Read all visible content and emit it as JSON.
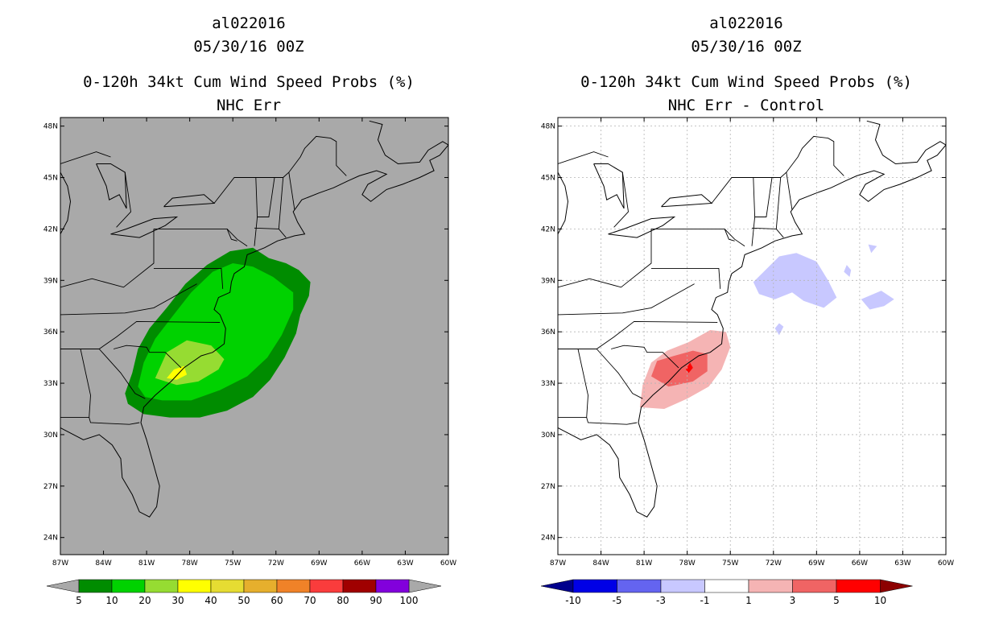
{
  "panels": [
    {
      "title_lines": [
        "al022016",
        "05/30/16 00Z",
        "0-120h 34kt Cum Wind Speed Probs (%)",
        "NHC Err"
      ],
      "background": "#a9a9a9",
      "gridlines": false
    },
    {
      "title_lines": [
        "al022016",
        "05/30/16 00Z",
        "0-120h 34kt Cum Wind Speed Probs (%)",
        "NHC Err - Control"
      ],
      "background": "#ffffff",
      "gridlines": true
    }
  ],
  "chart_data": [
    {
      "type": "heatmap",
      "title": "0-120h 34kt Cum Wind Speed Probs (%)",
      "subtitle": "NHC Err",
      "storm": "al022016",
      "date": "05/30/16 00Z",
      "xlim": [
        -87,
        -60
      ],
      "ylim": [
        23,
        48.5
      ],
      "x_ticks": [
        "87W",
        "84W",
        "81W",
        "78W",
        "75W",
        "72W",
        "69W",
        "66W",
        "63W",
        "60W"
      ],
      "y_ticks": [
        "24N",
        "27N",
        "30N",
        "33N",
        "36N",
        "39N",
        "42N",
        "45N",
        "48N"
      ],
      "colorbar": {
        "labels": [
          "5",
          "10",
          "20",
          "30",
          "40",
          "50",
          "60",
          "70",
          "80",
          "90",
          "100"
        ],
        "colors": [
          "#008c00",
          "#00d200",
          "#96dc32",
          "#ffff00",
          "#e6dc32",
          "#e6af2d",
          "#f08228",
          "#fa3c3c",
          "#a00000",
          "#8200dc"
        ],
        "under_color": "#a9a9a9",
        "over_color": "#a9a9a9"
      },
      "contours": [
        {
          "level": "5-10",
          "color": "#008c00",
          "points": [
            [
              -82.5,
              32.4
            ],
            [
              -82.0,
              33.6
            ],
            [
              -81.6,
              35.0
            ],
            [
              -80.8,
              36.2
            ],
            [
              -79.6,
              37.4
            ],
            [
              -78.3,
              38.8
            ],
            [
              -76.8,
              39.9
            ],
            [
              -75.2,
              40.7
            ],
            [
              -73.6,
              40.9
            ],
            [
              -72.5,
              40.3
            ],
            [
              -71.3,
              40.0
            ],
            [
              -70.4,
              39.6
            ],
            [
              -69.6,
              38.9
            ],
            [
              -69.7,
              38.1
            ],
            [
              -70.3,
              37.0
            ],
            [
              -70.6,
              35.9
            ],
            [
              -71.4,
              34.5
            ],
            [
              -72.4,
              33.2
            ],
            [
              -73.6,
              32.2
            ],
            [
              -75.4,
              31.4
            ],
            [
              -77.3,
              31.0
            ],
            [
              -79.4,
              31.0
            ],
            [
              -81.2,
              31.2
            ],
            [
              -82.3,
              31.8
            ]
          ]
        },
        {
          "level": "10-20",
          "color": "#00d200",
          "points": [
            [
              -81.6,
              32.8
            ],
            [
              -81.2,
              34.2
            ],
            [
              -80.4,
              35.6
            ],
            [
              -79.2,
              36.9
            ],
            [
              -77.9,
              38.3
            ],
            [
              -76.4,
              39.5
            ],
            [
              -75.0,
              40.0
            ],
            [
              -73.6,
              39.8
            ],
            [
              -72.2,
              39.2
            ],
            [
              -70.8,
              38.3
            ],
            [
              -70.8,
              37.3
            ],
            [
              -71.6,
              35.8
            ],
            [
              -72.6,
              34.5
            ],
            [
              -74.0,
              33.4
            ],
            [
              -75.9,
              32.6
            ],
            [
              -77.9,
              32.0
            ],
            [
              -79.9,
              32.0
            ],
            [
              -81.1,
              32.2
            ]
          ]
        },
        {
          "level": "20-30",
          "color": "#96dc32",
          "points": [
            [
              -80.4,
              33.3
            ],
            [
              -79.6,
              34.8
            ],
            [
              -78.2,
              35.5
            ],
            [
              -76.5,
              35.2
            ],
            [
              -75.6,
              34.4
            ],
            [
              -76.0,
              33.8
            ],
            [
              -77.4,
              33.1
            ],
            [
              -78.9,
              32.9
            ]
          ]
        },
        {
          "level": "30-40",
          "color": "#ffff00",
          "points": [
            [
              -79.6,
              33.3
            ],
            [
              -79.1,
              33.8
            ],
            [
              -78.4,
              34.0
            ],
            [
              -78.2,
              33.5
            ],
            [
              -78.9,
              33.2
            ]
          ]
        }
      ]
    },
    {
      "type": "heatmap",
      "title": "0-120h 34kt Cum Wind Speed Probs (%)",
      "subtitle": "NHC Err - Control",
      "storm": "al022016",
      "date": "05/30/16 00Z",
      "xlim": [
        -87,
        -60
      ],
      "ylim": [
        23,
        48.5
      ],
      "x_ticks": [
        "87W",
        "84W",
        "81W",
        "78W",
        "75W",
        "72W",
        "69W",
        "66W",
        "63W",
        "60W"
      ],
      "y_ticks": [
        "24N",
        "27N",
        "30N",
        "33N",
        "36N",
        "39N",
        "42N",
        "45N",
        "48N"
      ],
      "colorbar": {
        "labels": [
          "-10",
          "-5",
          "-3",
          "-1",
          "1",
          "3",
          "5",
          "10"
        ],
        "colors": [
          "#0000e6",
          "#6464f0",
          "#c8c8ff",
          "#ffffff",
          "#f5b4b4",
          "#f06464",
          "#ff0000"
        ],
        "under_color": "#00008c",
        "over_color": "#8c0000"
      },
      "contours": [
        {
          "level": "1 to 3",
          "color": "#f5b4b4",
          "points": [
            [
              -81.3,
              31.6
            ],
            [
              -81.1,
              32.9
            ],
            [
              -80.5,
              34.2
            ],
            [
              -79.4,
              34.9
            ],
            [
              -77.9,
              35.4
            ],
            [
              -76.4,
              36.1
            ],
            [
              -75.3,
              36.0
            ],
            [
              -75.0,
              35.1
            ],
            [
              -75.6,
              33.8
            ],
            [
              -76.5,
              32.8
            ],
            [
              -78.0,
              32.1
            ],
            [
              -79.6,
              31.5
            ]
          ]
        },
        {
          "level": "3 to 5",
          "color": "#f06464",
          "points": [
            [
              -80.5,
              33.4
            ],
            [
              -80.1,
              34.3
            ],
            [
              -78.9,
              34.6
            ],
            [
              -77.6,
              34.9
            ],
            [
              -76.6,
              34.7
            ],
            [
              -76.6,
              33.7
            ],
            [
              -77.6,
              33.1
            ],
            [
              -79.3,
              32.8
            ]
          ]
        },
        {
          "level": "5 to 10",
          "color": "#ff0000",
          "points": [
            [
              -78.1,
              33.8
            ],
            [
              -77.8,
              34.2
            ],
            [
              -77.6,
              33.9
            ],
            [
              -77.9,
              33.6
            ]
          ]
        },
        {
          "level": "-1 to -3",
          "color": "#c8c8ff",
          "points": [
            [
              -72.8,
              39.4
            ],
            [
              -71.6,
              40.4
            ],
            [
              -70.4,
              40.6
            ],
            [
              -69.0,
              40.1
            ],
            [
              -68.2,
              39.0
            ],
            [
              -67.6,
              38.0
            ],
            [
              -68.5,
              37.4
            ],
            [
              -69.9,
              37.8
            ],
            [
              -70.7,
              38.3
            ],
            [
              -71.9,
              37.9
            ],
            [
              -73.0,
              38.2
            ],
            [
              -73.4,
              38.9
            ]
          ]
        },
        {
          "level": "-1 to -3",
          "color": "#c8c8ff",
          "points": [
            [
              -70.0,
              38.3
            ],
            [
              -69.2,
              38.7
            ],
            [
              -68.4,
              38.1
            ],
            [
              -69.5,
              37.7
            ]
          ]
        },
        {
          "level": "-1 to -3",
          "color": "#c8c8ff",
          "points": [
            [
              -66.9,
              39.9
            ],
            [
              -66.6,
              39.6
            ],
            [
              -66.7,
              39.2
            ],
            [
              -67.1,
              39.5
            ]
          ]
        },
        {
          "level": "-1 to -3",
          "color": "#c8c8ff",
          "points": [
            [
              -65.4,
              41.1
            ],
            [
              -64.8,
              41.0
            ],
            [
              -65.2,
              40.6
            ]
          ]
        },
        {
          "level": "-1 to -3",
          "color": "#c8c8ff",
          "points": [
            [
              -65.9,
              37.9
            ],
            [
              -64.5,
              38.4
            ],
            [
              -63.6,
              37.9
            ],
            [
              -64.3,
              37.5
            ],
            [
              -65.3,
              37.3
            ]
          ]
        },
        {
          "level": "-1 to -3",
          "color": "#c8c8ff",
          "points": [
            [
              -71.6,
              36.5
            ],
            [
              -71.3,
              36.3
            ],
            [
              -71.6,
              35.8
            ],
            [
              -71.9,
              36.2
            ]
          ]
        }
      ]
    }
  ]
}
